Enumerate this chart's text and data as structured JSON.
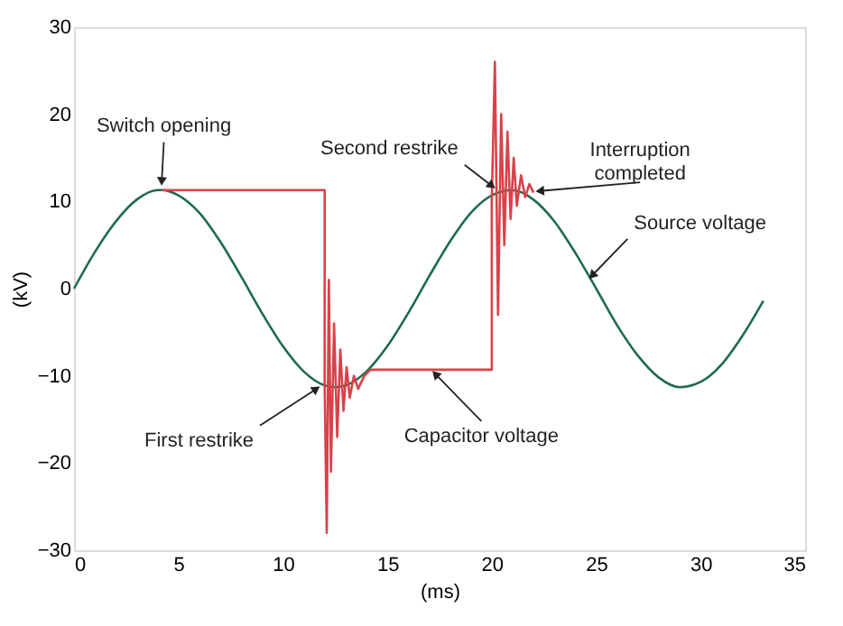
{
  "chart_data": {
    "type": "line",
    "xlabel": "(ms)",
    "ylabel": "(kV)",
    "xlim": [
      0,
      35
    ],
    "ylim": [
      -30,
      30
    ],
    "xticks": [
      0,
      5,
      10,
      15,
      20,
      25,
      30,
      35
    ],
    "yticks": [
      -30,
      -20,
      -10,
      0,
      10,
      20,
      30
    ],
    "grid": false,
    "series": [
      {
        "color": "#1f6b4f",
        "x": [
          0,
          1,
          2,
          3,
          4,
          4.17,
          5,
          6,
          7,
          8,
          9,
          10,
          11,
          12,
          12.5,
          13,
          14,
          15,
          16,
          17,
          18,
          19,
          20,
          21,
          22,
          23,
          24,
          25,
          26,
          27,
          28,
          29,
          30,
          31,
          32,
          33
        ],
        "values": [
          0,
          4.2,
          7.7,
          10.2,
          11.3,
          11.3,
          10.7,
          8.7,
          5.4,
          1.4,
          -2.8,
          -6.6,
          -9.5,
          -11.1,
          -11.3,
          -11.1,
          -9.5,
          -6.6,
          -2.8,
          1.4,
          5.4,
          8.7,
          10.7,
          11.3,
          10.2,
          7.7,
          4.1,
          0,
          -4.2,
          -7.7,
          -10.2,
          -11.3,
          -10.7,
          -8.7,
          -5.4,
          -1.4
        ]
      },
      {
        "color": "#d9424a",
        "x": [
          4.2,
          12.0,
          12.0,
          12.1,
          12.2,
          12.3,
          12.45,
          12.6,
          12.75,
          12.9,
          13.05,
          13.2,
          13.4,
          13.6,
          13.9,
          14.2,
          20.0,
          20.0,
          20.15,
          20.3,
          20.45,
          20.6,
          20.75,
          20.9,
          21.05,
          21.2,
          21.4,
          21.6,
          21.8,
          22.0
        ],
        "values": [
          11.3,
          11.3,
          -11,
          -28,
          1,
          -21,
          -4,
          -17,
          -7,
          -14,
          -9,
          -12.5,
          -10,
          -11.5,
          -10,
          -9.3,
          -9.3,
          10,
          26,
          -3,
          20,
          5,
          18,
          8,
          15,
          9.5,
          13,
          10.5,
          12,
          11
        ]
      }
    ],
    "annotations": [
      {
        "text": "Switch opening",
        "x": 4.2,
        "y": 12.3
      },
      {
        "text": "Second restrike",
        "x": 20.0,
        "y": 11.8
      },
      {
        "text": "Interruption completed",
        "x": 22.3,
        "y": 11.2
      },
      {
        "text": "Source voltage",
        "x": 24.8,
        "y": 1.5
      },
      {
        "text": "First restrike",
        "x": 11.6,
        "y": -11.5
      },
      {
        "text": "Capacitor voltage",
        "x": 17.3,
        "y": -9.8
      }
    ]
  }
}
